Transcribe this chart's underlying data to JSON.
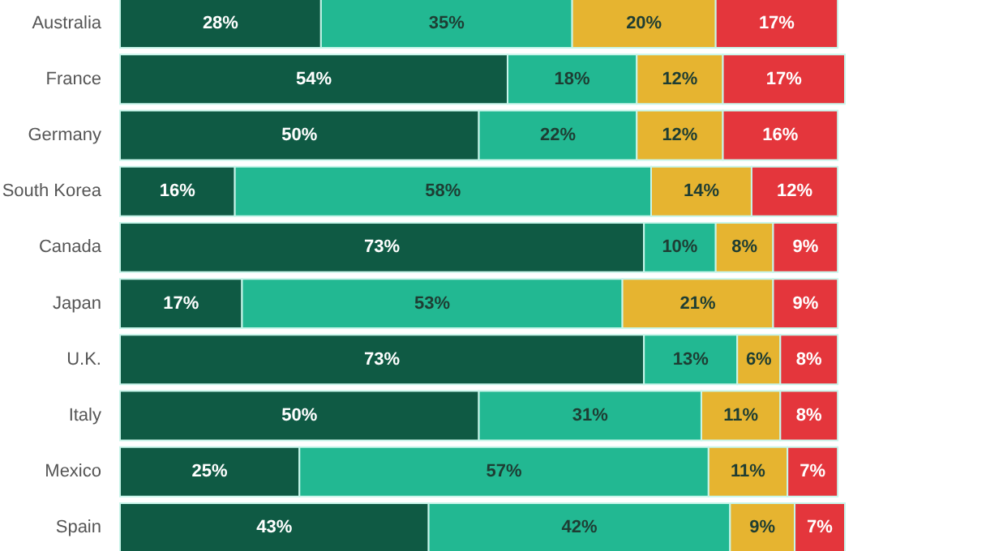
{
  "chart_data": {
    "type": "bar",
    "orientation": "horizontal",
    "stacked": true,
    "grid": false,
    "tick_labels": "y",
    "categories": [
      "Australia",
      "France",
      "Germany",
      "South Korea",
      "Canada",
      "Japan",
      "U.K.",
      "Italy",
      "Mexico",
      "Spain"
    ],
    "series": [
      {
        "color": "#0f5a44",
        "values": [
          28,
          54,
          50,
          16,
          73,
          17,
          73,
          50,
          25,
          43
        ],
        "value_labels": [
          "28%",
          "54%",
          "50%",
          "16%",
          "73%",
          "17%",
          "73%",
          "50%",
          "25%",
          "43%"
        ]
      },
      {
        "color": "#22b892",
        "values": [
          35,
          18,
          22,
          58,
          10,
          53,
          13,
          31,
          57,
          42
        ],
        "value_labels": [
          "35%",
          "18%",
          "22%",
          "58%",
          "10%",
          "53%",
          "13%",
          "31%",
          "57%",
          "42%"
        ]
      },
      {
        "color": "#e6b430",
        "values": [
          20,
          12,
          12,
          14,
          8,
          21,
          6,
          11,
          11,
          9
        ],
        "value_labels": [
          "20%",
          "12%",
          "12%",
          "14%",
          "8%",
          "21%",
          "6%",
          "11%",
          "11%",
          "9%"
        ]
      },
      {
        "color": "#e4363c",
        "values": [
          17,
          17,
          16,
          12,
          9,
          9,
          8,
          8,
          7,
          7
        ],
        "value_labels": [
          "17%",
          "17%",
          "16%",
          "12%",
          "9%",
          "9%",
          "8%",
          "8%",
          "7%",
          "7%"
        ]
      }
    ]
  }
}
